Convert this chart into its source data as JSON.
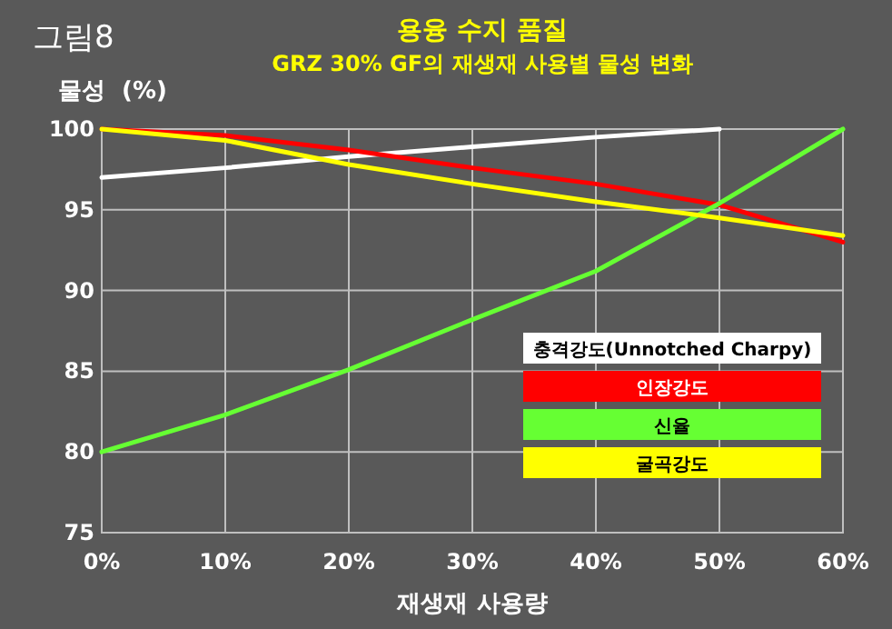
{
  "chart_data": {
    "type": "line",
    "title": "용융 수지 품질",
    "subtitle": "GRZ 30% GF의 재생재 사용별 물성 변화",
    "annotations": [
      "그림8"
    ],
    "ylabel": "물성  (%)",
    "xlabel": "재생재 사용량",
    "x": [
      0,
      10,
      20,
      30,
      40,
      50,
      60
    ],
    "xlim": [
      0,
      60
    ],
    "xticks": [
      {
        "value": 0,
        "label": "0%"
      },
      {
        "value": 10,
        "label": "10%"
      },
      {
        "value": 20,
        "label": "20%"
      },
      {
        "value": 30,
        "label": "30%"
      },
      {
        "value": 40,
        "label": "40%"
      },
      {
        "value": 50,
        "label": "50%"
      },
      {
        "value": 60,
        "label": "60%"
      }
    ],
    "ylim": [
      75,
      100
    ],
    "yticks": [
      75,
      80,
      85,
      90,
      95,
      100
    ],
    "grid": true,
    "legend": "bottom right",
    "marker": "none",
    "line_style": "solid",
    "series": [
      {
        "name": "충격강도(Unnotched Charpy)",
        "color": "#ffffff",
        "values": [
          97.0,
          97.6,
          98.3,
          98.9,
          99.5,
          100,
          null
        ]
      },
      {
        "name": "인장강도",
        "color": "#ff0000",
        "values": [
          100,
          99.6,
          98.7,
          97.6,
          96.6,
          95.3,
          93.0
        ]
      },
      {
        "name": "신율",
        "color": "#66ff33",
        "values": [
          80.0,
          82.3,
          85.1,
          88.2,
          91.2,
          95.4,
          100
        ]
      },
      {
        "name": "굴곡강도",
        "color": "#ffff00",
        "values": [
          100,
          99.3,
          97.8,
          96.6,
          95.5,
          94.5,
          93.4
        ]
      }
    ]
  }
}
